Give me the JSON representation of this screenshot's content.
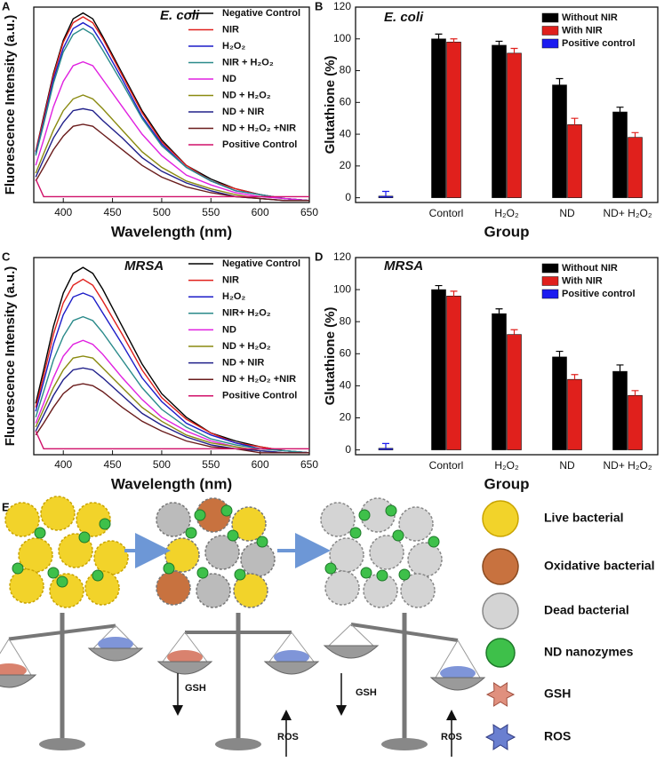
{
  "chart_data": [
    {
      "type": "line",
      "panel": "A",
      "annotation": "E. coli",
      "xlabel": "Wavelength (nm)",
      "ylabel": "Fluorescence Intensity (a.u.)",
      "x": [
        372,
        380,
        390,
        400,
        410,
        420,
        430,
        440,
        460,
        480,
        500,
        525,
        550,
        575,
        600,
        625,
        650
      ],
      "xlim": [
        370,
        650
      ],
      "xticks": [
        400,
        450,
        500,
        550,
        600,
        650
      ],
      "ylim": [
        0,
        100
      ],
      "series": [
        {
          "name": "Negative Control",
          "color": "#000000",
          "values": [
            26,
            44,
            66,
            83,
            94,
            97,
            94,
            85,
            66,
            47,
            32,
            19,
            12,
            7,
            4,
            2,
            1
          ]
        },
        {
          "name": "NIR",
          "color": "#e0201c",
          "values": [
            26,
            43,
            65,
            82,
            92,
            95,
            92,
            84,
            65,
            46,
            31,
            19,
            11,
            7,
            4,
            2,
            1
          ]
        },
        {
          "name": "H₂O₂",
          "color": "#1c1cc8",
          "values": [
            25,
            41,
            63,
            79,
            89,
            92,
            89,
            81,
            63,
            44,
            30,
            18,
            11,
            6,
            4,
            2,
            1
          ]
        },
        {
          "name": "NIR + H₂O₂",
          "color": "#2a8a8a",
          "values": [
            24,
            40,
            61,
            77,
            86,
            89,
            86,
            78,
            61,
            43,
            29,
            18,
            11,
            6,
            4,
            2,
            1
          ]
        },
        {
          "name": "ND",
          "color": "#e020e0",
          "values": [
            19,
            32,
            49,
            62,
            70,
            72,
            70,
            63,
            49,
            35,
            24,
            14,
            9,
            5,
            3,
            2,
            1
          ]
        },
        {
          "name": "ND + H₂O₂",
          "color": "#8a8a10",
          "values": [
            15,
            25,
            37,
            47,
            53,
            55,
            53,
            48,
            37,
            26,
            18,
            11,
            7,
            4,
            2,
            1,
            1
          ]
        },
        {
          "name": "ND + NIR",
          "color": "#20208a",
          "values": [
            13,
            22,
            33,
            41,
            47,
            48,
            47,
            42,
            33,
            23,
            16,
            10,
            6,
            3,
            2,
            1,
            1
          ]
        },
        {
          "name": "ND + H₂O₂ +NIR",
          "color": "#6a1c1c",
          "values": [
            11,
            18,
            27,
            34,
            39,
            40,
            39,
            35,
            27,
            19,
            13,
            8,
            5,
            3,
            2,
            1,
            1
          ]
        },
        {
          "name": "Positive Control",
          "color": "#d0106a",
          "values": [
            12,
            3,
            3,
            3,
            3,
            3,
            3,
            3,
            3,
            3,
            3,
            3,
            3,
            3,
            3,
            3,
            3
          ]
        }
      ]
    },
    {
      "type": "bar",
      "panel": "B",
      "annotation": "E. coli",
      "xlabel": "Group",
      "ylabel": "Glutathione (%)",
      "categories": [
        null,
        "Contorl",
        "H₂O₂",
        "ND",
        "ND+ H₂O₂"
      ],
      "ylim": [
        -3,
        120
      ],
      "yticks": [
        0,
        20,
        40,
        60,
        80,
        100,
        120
      ],
      "series": [
        {
          "name": "Without NIR",
          "color": "#000000",
          "values": [
            null,
            100,
            96,
            71,
            54
          ],
          "errors": [
            null,
            3,
            2.5,
            4,
            3
          ]
        },
        {
          "name": "With NIR",
          "color": "#e0201c",
          "values": [
            null,
            98,
            91,
            46,
            38
          ],
          "errors": [
            null,
            2,
            3,
            4,
            3
          ]
        },
        {
          "name": "Positive control",
          "color": "#1c1cf0",
          "values": [
            1,
            null,
            null,
            null,
            null
          ],
          "errors": [
            3,
            null,
            null,
            null,
            null
          ]
        }
      ]
    },
    {
      "type": "line",
      "panel": "C",
      "annotation": "MRSA",
      "xlabel": "Wavelength (nm)",
      "ylabel": "Fluorescence Intensity (a.u.)",
      "x": [
        372,
        380,
        390,
        400,
        410,
        420,
        430,
        440,
        460,
        480,
        500,
        525,
        550,
        575,
        600,
        625,
        650
      ],
      "xlim": [
        370,
        650
      ],
      "xticks": [
        400,
        450,
        500,
        550,
        600,
        650
      ],
      "ylim": [
        0,
        100
      ],
      "series": [
        {
          "name": "Negative Control",
          "color": "#000000",
          "values": [
            26,
            43,
            65,
            82,
            92,
            95,
            92,
            84,
            65,
            46,
            31,
            19,
            11,
            7,
            4,
            2,
            1
          ]
        },
        {
          "name": "NIR",
          "color": "#e0201c",
          "values": [
            24,
            40,
            61,
            77,
            86,
            89,
            86,
            78,
            61,
            43,
            29,
            18,
            11,
            6,
            4,
            2,
            1
          ]
        },
        {
          "name": "H₂O₂",
          "color": "#1c1cc8",
          "values": [
            22,
            37,
            56,
            71,
            80,
            82,
            80,
            72,
            56,
            39,
            27,
            16,
            10,
            6,
            3,
            2,
            1
          ]
        },
        {
          "name": "NIR+ H₂O₂",
          "color": "#2a8a8a",
          "values": [
            19,
            32,
            48,
            60,
            68,
            70,
            68,
            62,
            48,
            34,
            23,
            14,
            8,
            5,
            3,
            2,
            1
          ]
        },
        {
          "name": "ND",
          "color": "#e020e0",
          "values": [
            16,
            26,
            39,
            50,
            56,
            58,
            56,
            51,
            39,
            28,
            19,
            12,
            7,
            4,
            2,
            1,
            1
          ]
        },
        {
          "name": "ND + H₂O₂",
          "color": "#8a8a10",
          "values": [
            14,
            23,
            34,
            43,
            49,
            50,
            49,
            44,
            34,
            24,
            17,
            10,
            6,
            4,
            2,
            1,
            1
          ]
        },
        {
          "name": "ND + NIR",
          "color": "#20208a",
          "values": [
            12,
            20,
            30,
            38,
            43,
            44,
            43,
            39,
            30,
            21,
            15,
            9,
            5,
            3,
            2,
            1,
            1
          ]
        },
        {
          "name": "ND + H₂O₂ +NIR",
          "color": "#6a1c1c",
          "values": [
            10,
            16,
            24,
            31,
            35,
            36,
            35,
            32,
            24,
            17,
            12,
            7,
            4,
            3,
            1,
            1,
            1
          ]
        },
        {
          "name": "Positive Control",
          "color": "#d0106a",
          "values": [
            12,
            3,
            3,
            3,
            3,
            3,
            3,
            3,
            3,
            3,
            3,
            3,
            3,
            3,
            3,
            3,
            3
          ]
        }
      ]
    },
    {
      "type": "bar",
      "panel": "D",
      "annotation": "MRSA",
      "xlabel": "Group",
      "ylabel": "Glutathione (%)",
      "categories": [
        null,
        "Contorl",
        "H₂O₂",
        "ND",
        "ND+ H₂O₂"
      ],
      "ylim": [
        -3,
        120
      ],
      "yticks": [
        0,
        20,
        40,
        60,
        80,
        100,
        120
      ],
      "series": [
        {
          "name": "Without NIR",
          "color": "#000000",
          "values": [
            null,
            100,
            85,
            58,
            49
          ],
          "errors": [
            null,
            2.5,
            3,
            3.5,
            4
          ]
        },
        {
          "name": "With NIR",
          "color": "#e0201c",
          "values": [
            null,
            96,
            72,
            44,
            34
          ],
          "errors": [
            null,
            3,
            3,
            3,
            3
          ]
        },
        {
          "name": "Positive control",
          "color": "#1c1cf0",
          "values": [
            1,
            null,
            null,
            null,
            null
          ],
          "errors": [
            3,
            null,
            null,
            null,
            null
          ]
        }
      ]
    }
  ],
  "illustration": {
    "panel": "E",
    "legend": [
      "Live bacterial",
      "Oxidative bacterial",
      "Dead bacterial",
      "ND nanozymes",
      "GSH",
      "ROS"
    ],
    "labels": [
      "GSH",
      "ROS",
      "GSH",
      "ROS"
    ]
  }
}
